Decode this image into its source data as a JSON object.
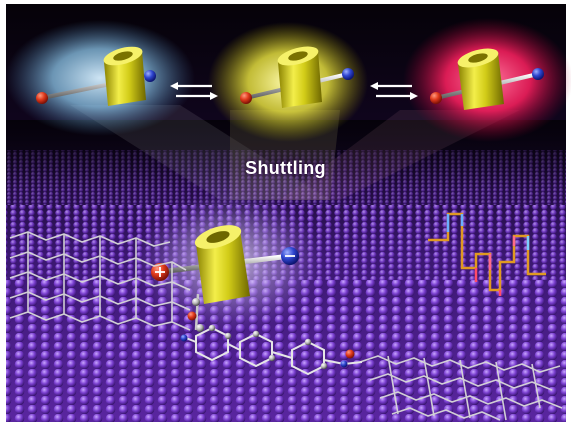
{
  "figure": {
    "caption_label": "Shuttling",
    "states": [
      {
        "glow_color": "#9fd3ee",
        "ring_position": "left"
      },
      {
        "glow_color": "#f4f05a",
        "ring_position": "middle"
      },
      {
        "glow_color": "#ff2f6a",
        "ring_position": "right"
      }
    ],
    "colors": {
      "background": "#0b0314",
      "surface_atom": "#6a30b8",
      "cyclodextrin": "#d8d21c",
      "positive_end": "#d8301c",
      "negative_end": "#2a3cc8",
      "graphene_atom": "#bdbdbd",
      "signal_trace": "#e0a020"
    },
    "icons": [
      "equilibrium-arrows-icon",
      "plus-icon",
      "minus-icon"
    ]
  }
}
